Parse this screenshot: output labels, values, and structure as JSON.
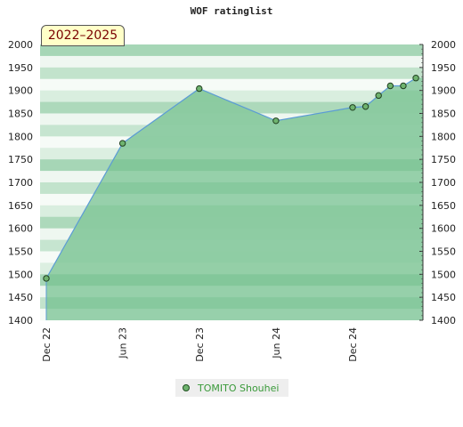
{
  "chart_data": {
    "type": "line",
    "title": "WOF ratinglist",
    "period_tag": "2022–2025",
    "xlabel": "",
    "ylabel": "",
    "ylim": [
      1400,
      2000
    ],
    "yticks": [
      1400,
      1450,
      1500,
      1550,
      1600,
      1650,
      1700,
      1750,
      1800,
      1850,
      1900,
      1950,
      2000
    ],
    "x_tick_labels": [
      "Dec 22",
      "Jun 23",
      "Dec 23",
      "Jun 24",
      "Dec 24"
    ],
    "x_tick_dates": [
      "2022-12-01",
      "2023-06-01",
      "2023-12-01",
      "2024-06-01",
      "2024-12-01"
    ],
    "x_range": [
      "2022-12-01",
      "2025-05-15"
    ],
    "grid": false,
    "legend_position": "bottom-center",
    "series": [
      {
        "name": "TOMITO Shouhei",
        "color": "#5b9bd5",
        "marker_color": "#6fb36f",
        "x": [
          "2022-12-01",
          "2023-06-01",
          "2023-12-01",
          "2024-06-01",
          "2024-12-01",
          "2025-01-01",
          "2025-02-01",
          "2025-03-01",
          "2025-04-01",
          "2025-05-01"
        ],
        "y": [
          1491,
          1785,
          1904,
          1834,
          1863,
          1865,
          1889,
          1910,
          1910,
          1927
        ]
      }
    ]
  },
  "legend": {
    "label": "TOMITO Shouhei"
  },
  "colors": {
    "fill": "#7dc495",
    "band_dark": "#b3dcc0",
    "band_light": "#eef7f0",
    "line": "#5b9bd5",
    "tag_bg": "#ffffc8",
    "tag_text": "#7a0000"
  }
}
